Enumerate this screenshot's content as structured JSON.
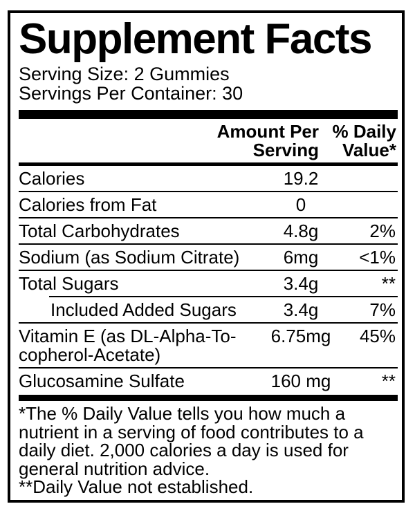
{
  "label": {
    "title": "Supplement Facts",
    "serving_size": "Serving Size: 2 Gummies",
    "servings_per_container": "Servings Per Container: 30"
  },
  "table": {
    "amount_header": "Amount Per\nServing",
    "dv_header": "% Daily\nValue*",
    "rows": [
      {
        "label": "Calories",
        "amount": "19.2",
        "dv": ""
      },
      {
        "label": "Calories from Fat",
        "amount": "0",
        "dv": ""
      },
      {
        "label": "Total Carbohydrates",
        "amount": "4.8g",
        "dv": "2%"
      },
      {
        "label": "Sodium (as Sodium Citrate)",
        "amount": "6mg",
        "dv": "<1%"
      },
      {
        "label": "Total Sugars",
        "amount": "3.4g",
        "dv": "**"
      },
      {
        "label": "Included Added Sugars",
        "amount": "3.4g",
        "dv": "7%"
      },
      {
        "label": "Vitamin E (as DL-Alpha-To-\ncopherol-Acetate)",
        "amount": "6.75mg",
        "dv": "45%"
      },
      {
        "label": "Glucosamine Sulfate",
        "amount": "160 mg",
        "dv": "**"
      }
    ]
  },
  "footnotes": {
    "daily_value": "*The % Daily Value tells you how much a\nnutrient in a serving of food contributes to a\ndaily diet. 2,000 calories a day is used for\ngeneral nutrition advice.",
    "not_established": "**Daily Value not established."
  },
  "colors": {
    "text": "#000000",
    "background": "#ffffff",
    "border": "#000000"
  }
}
